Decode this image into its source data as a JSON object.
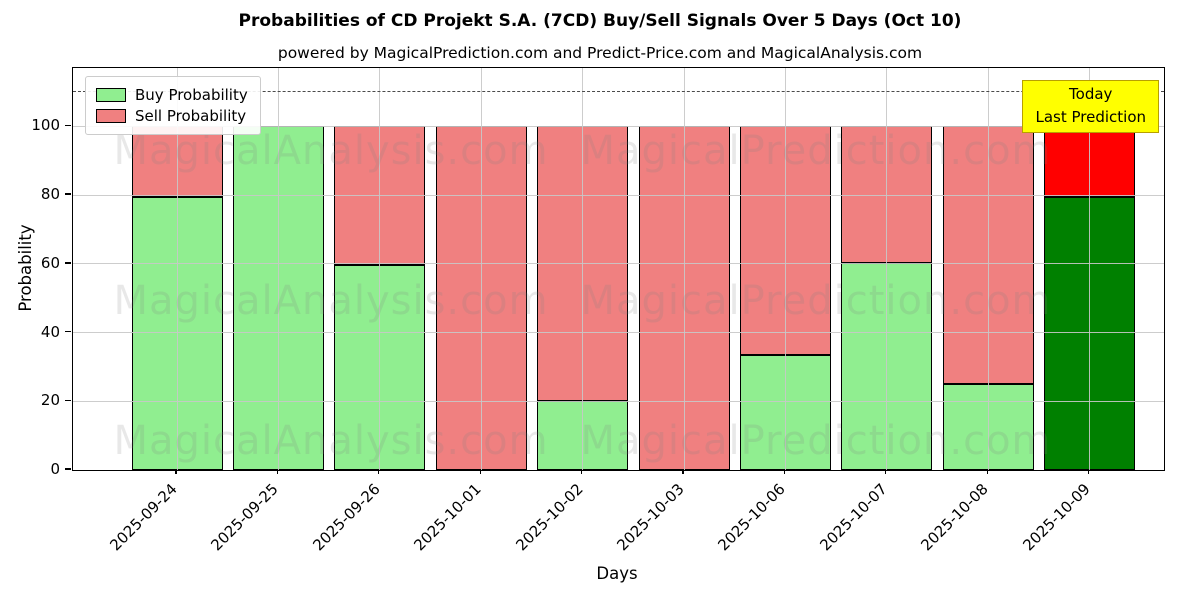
{
  "chart_data": {
    "type": "bar",
    "stacked": true,
    "title": "Probabilities of CD Projekt S.A. (7CD) Buy/Sell Signals Over 5 Days (Oct 10)",
    "subtitle": "powered by MagicalPrediction.com and Predict-Price.com and MagicalAnalysis.com",
    "xlabel": "Days",
    "ylabel": "Probability",
    "ylim": [
      0,
      117
    ],
    "yticks": [
      0,
      20,
      40,
      60,
      80,
      100
    ],
    "grid": true,
    "categories": [
      "2025-09-24",
      "2025-09-25",
      "2025-09-26",
      "2025-10-01",
      "2025-10-02",
      "2025-10-03",
      "2025-10-06",
      "2025-10-07",
      "2025-10-08",
      "2025-10-09"
    ],
    "series": [
      {
        "name": "Buy Probability",
        "values": [
          79.4,
          100,
          59.7,
          0,
          20,
          0,
          33.4,
          60.3,
          25,
          79.4
        ],
        "color": "#90ee90",
        "last_bar_color": "#008000"
      },
      {
        "name": "Sell Probability",
        "values": [
          20.6,
          0,
          40.3,
          100,
          80,
          100,
          66.6,
          39.7,
          75,
          20.6
        ],
        "color": "#f08080",
        "last_bar_color": "#ff0000"
      }
    ],
    "legend_position": "upper-left",
    "reference_line": {
      "y": 110,
      "style": "dashed",
      "color": "#4a4a4a"
    },
    "annotation": {
      "line1": "Today",
      "line2": "Last Prediction",
      "bg": "#ffff00"
    },
    "watermarks": [
      "MagicalAnalysis.com",
      "MagicalPrediction.com"
    ]
  }
}
